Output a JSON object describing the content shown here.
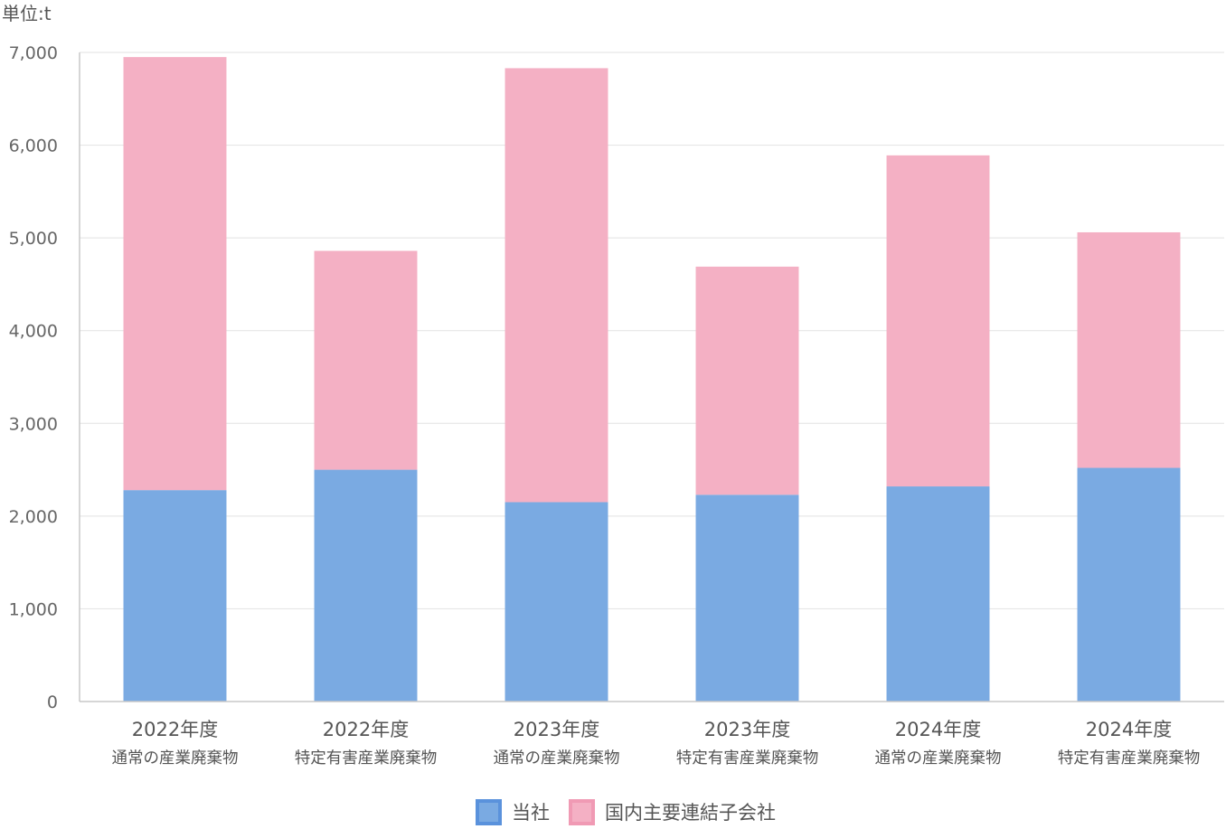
{
  "chart_data": {
    "type": "bar",
    "stacked": true,
    "unit_label": "単位:t",
    "categories": [
      {
        "year": "2022年度",
        "kind": "通常の産業廃棄物"
      },
      {
        "year": "2022年度",
        "kind": "特定有害産業廃棄物"
      },
      {
        "year": "2023年度",
        "kind": "通常の産業廃棄物"
      },
      {
        "year": "2023年度",
        "kind": "特定有害産業廃棄物"
      },
      {
        "year": "2024年度",
        "kind": "通常の産業廃棄物"
      },
      {
        "year": "2024年度",
        "kind": "特定有害産業廃棄物"
      }
    ],
    "series": [
      {
        "name": "当社",
        "color": "#7aaae2",
        "legend_color": "#5a92dc",
        "values": [
          2280,
          2500,
          2150,
          2230,
          2320,
          2520
        ]
      },
      {
        "name": "国内主要連結子会社",
        "color": "#f4b0c4",
        "legend_color": "#f09ab4",
        "values": [
          4670,
          2360,
          4680,
          2460,
          3570,
          2540
        ]
      }
    ],
    "ylim": [
      0,
      7000
    ],
    "yticks": [
      0,
      1000,
      2000,
      3000,
      4000,
      5000,
      6000,
      7000
    ],
    "ytick_labels": [
      "0",
      "1,000",
      "2,000",
      "3,000",
      "4,000",
      "5,000",
      "6,000",
      "7,000"
    ],
    "grid": true,
    "legend_position": "bottom-center"
  }
}
